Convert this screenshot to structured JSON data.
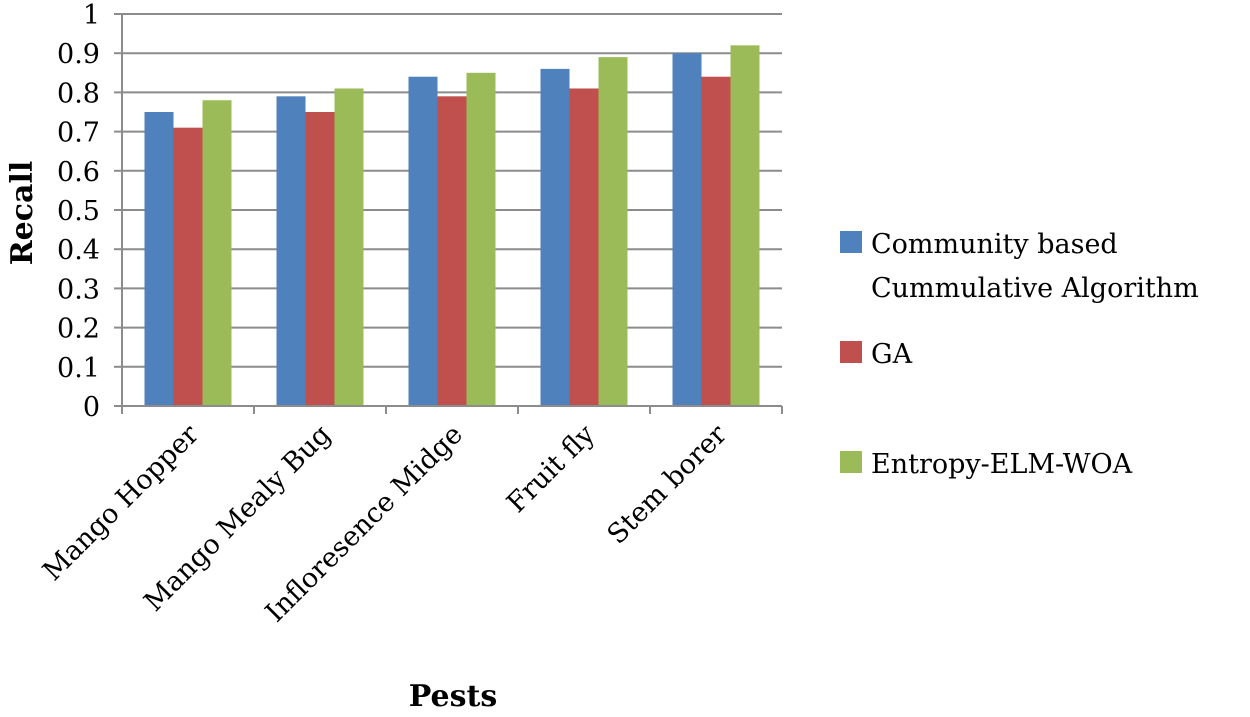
{
  "chart_data": {
    "type": "bar",
    "title": "",
    "xlabel": "Pests",
    "ylabel": "Recall",
    "ylim": [
      0,
      1
    ],
    "yticks": [
      "0",
      "0.1",
      "0.2",
      "0.3",
      "0.4",
      "0.5",
      "0.6",
      "0.7",
      "0.8",
      "0.9",
      "1"
    ],
    "grid": true,
    "legend_position": "right",
    "categories": [
      "Mango Hopper",
      "Mango Mealy Bug",
      "Infloresence Midge",
      "Fruit fly",
      "Stem borer"
    ],
    "series": [
      {
        "name": "Community based Cummulative Algorithm",
        "legend_lines": [
          "Community based",
          "Cummulative Algorithm"
        ],
        "color": "#4f81bd",
        "values": [
          0.75,
          0.79,
          0.84,
          0.86,
          0.9
        ]
      },
      {
        "name": "GA",
        "legend_lines": [
          "GA"
        ],
        "color": "#c0504d",
        "values": [
          0.71,
          0.75,
          0.79,
          0.81,
          0.84
        ]
      },
      {
        "name": "Entropy-ELM-WOA",
        "legend_lines": [
          "Entropy-ELM-WOA"
        ],
        "color": "#9bbb59",
        "values": [
          0.78,
          0.81,
          0.85,
          0.89,
          0.92
        ]
      }
    ]
  }
}
